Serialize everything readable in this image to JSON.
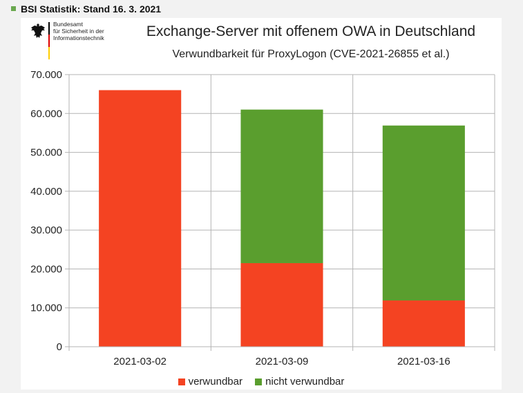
{
  "header": {
    "title": "BSI Statistik: Stand 16. 3. 2021",
    "bullet_color": "#6aa84f"
  },
  "logo": {
    "lines": [
      "Bundesamt",
      "für Sicherheit in der",
      "Informationstechnik"
    ],
    "icon": "federal-eagle-icon",
    "flag_colors": [
      "#000000",
      "#dd0000",
      "#ffce00"
    ]
  },
  "chart_data": {
    "type": "bar",
    "stacked": true,
    "title": "Exchange-Server mit offenem OWA in Deutschland",
    "subtitle": "Verwundbarkeit für ProxyLogon (CVE-2021-26855 et al.)",
    "categories": [
      "2021-03-02",
      "2021-03-09",
      "2021-03-16"
    ],
    "series": [
      {
        "name": "verwundbar",
        "color": "#f44322",
        "values": [
          66000,
          21500,
          11900
        ]
      },
      {
        "name": "nicht verwundbar",
        "color": "#5a9e2e",
        "values": [
          0,
          39500,
          45000
        ]
      }
    ],
    "ylim": [
      0,
      70000
    ],
    "yticks": [
      0,
      10000,
      20000,
      30000,
      40000,
      50000,
      60000,
      70000
    ],
    "ytick_labels": [
      "0",
      "10.000",
      "20.000",
      "30.000",
      "40.000",
      "50.000",
      "60.000",
      "70.000"
    ],
    "xlabel": "",
    "ylabel": "",
    "grid": true,
    "legend_position": "bottom"
  }
}
